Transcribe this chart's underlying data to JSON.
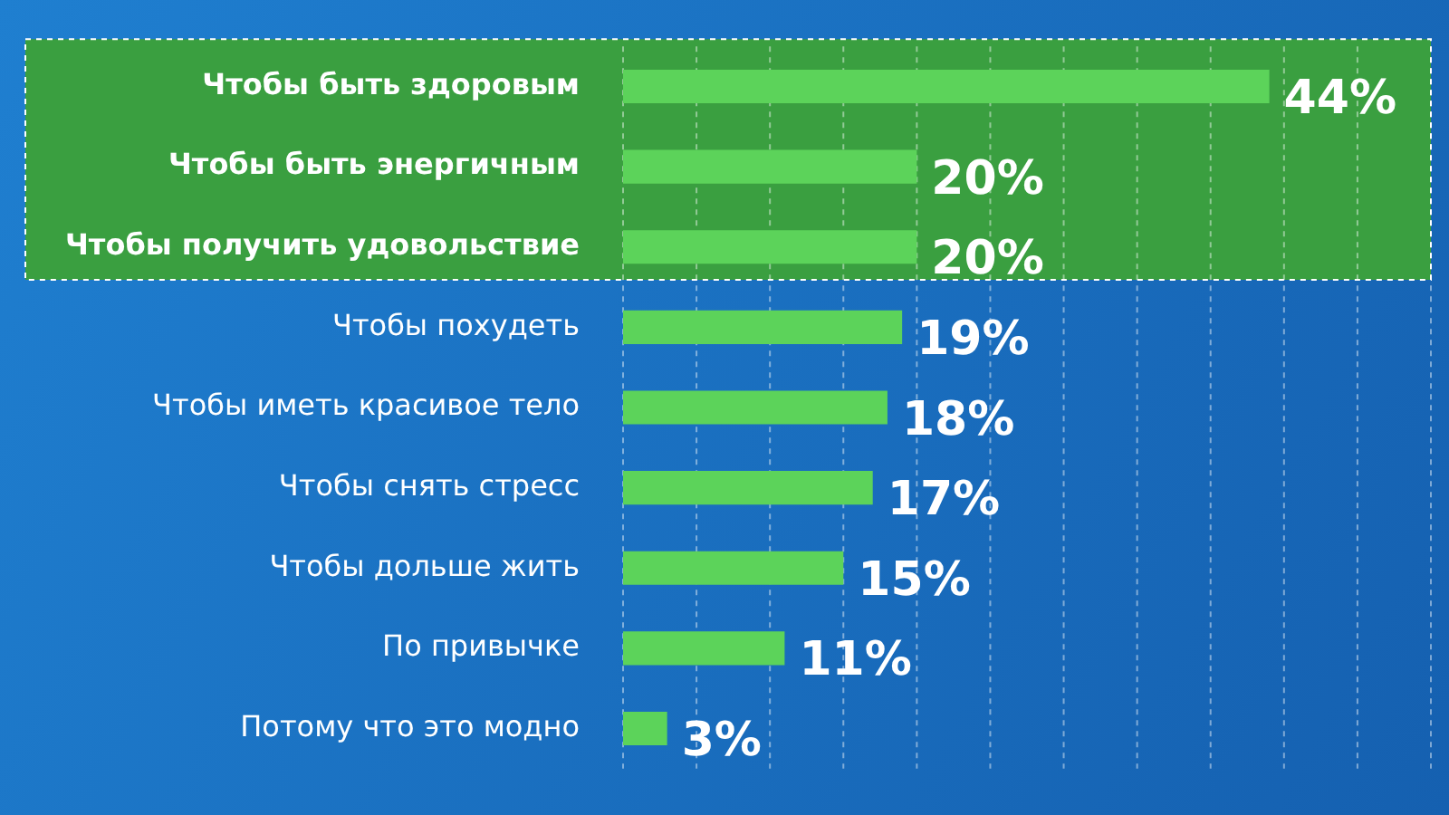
{
  "chart_data": {
    "type": "bar",
    "orientation": "horizontal",
    "categories": [
      "Чтобы быть здоровым",
      "Чтобы быть энергичным",
      "Чтобы получить удовольствие",
      "Чтобы похудеть",
      "Чтобы иметь красивое тело",
      "Чтобы снять стресс",
      "Чтобы дольше жить",
      "По привычке",
      "Потому что это модно"
    ],
    "values": [
      44,
      20,
      20,
      19,
      18,
      17,
      15,
      11,
      3
    ],
    "value_labels": [
      "44%",
      "20%",
      "20%",
      "19%",
      "18%",
      "17%",
      "15%",
      "11%",
      "3%"
    ],
    "color": "#5cd35a",
    "xlim": [
      0,
      55
    ],
    "xticks": [
      {
        "value": 0,
        "label": null
      },
      {
        "value": 5,
        "label": null
      },
      {
        "value": 10,
        "label": null
      },
      {
        "value": 15,
        "label": null
      },
      {
        "value": 20,
        "label": null
      },
      {
        "value": 25,
        "label": null
      },
      {
        "value": 30,
        "label": null
      },
      {
        "value": 35,
        "label": null
      },
      {
        "value": 40,
        "label": null
      },
      {
        "value": 45,
        "label": null
      },
      {
        "value": 50,
        "label": null
      },
      {
        "value": 55,
        "label": null
      }
    ],
    "grid": "x",
    "bands": [
      {
        "axis": "y",
        "from": "Чтобы быть здоровым",
        "to": "Чтобы получить удовольствие",
        "color": "#3a9f40"
      }
    ]
  }
}
